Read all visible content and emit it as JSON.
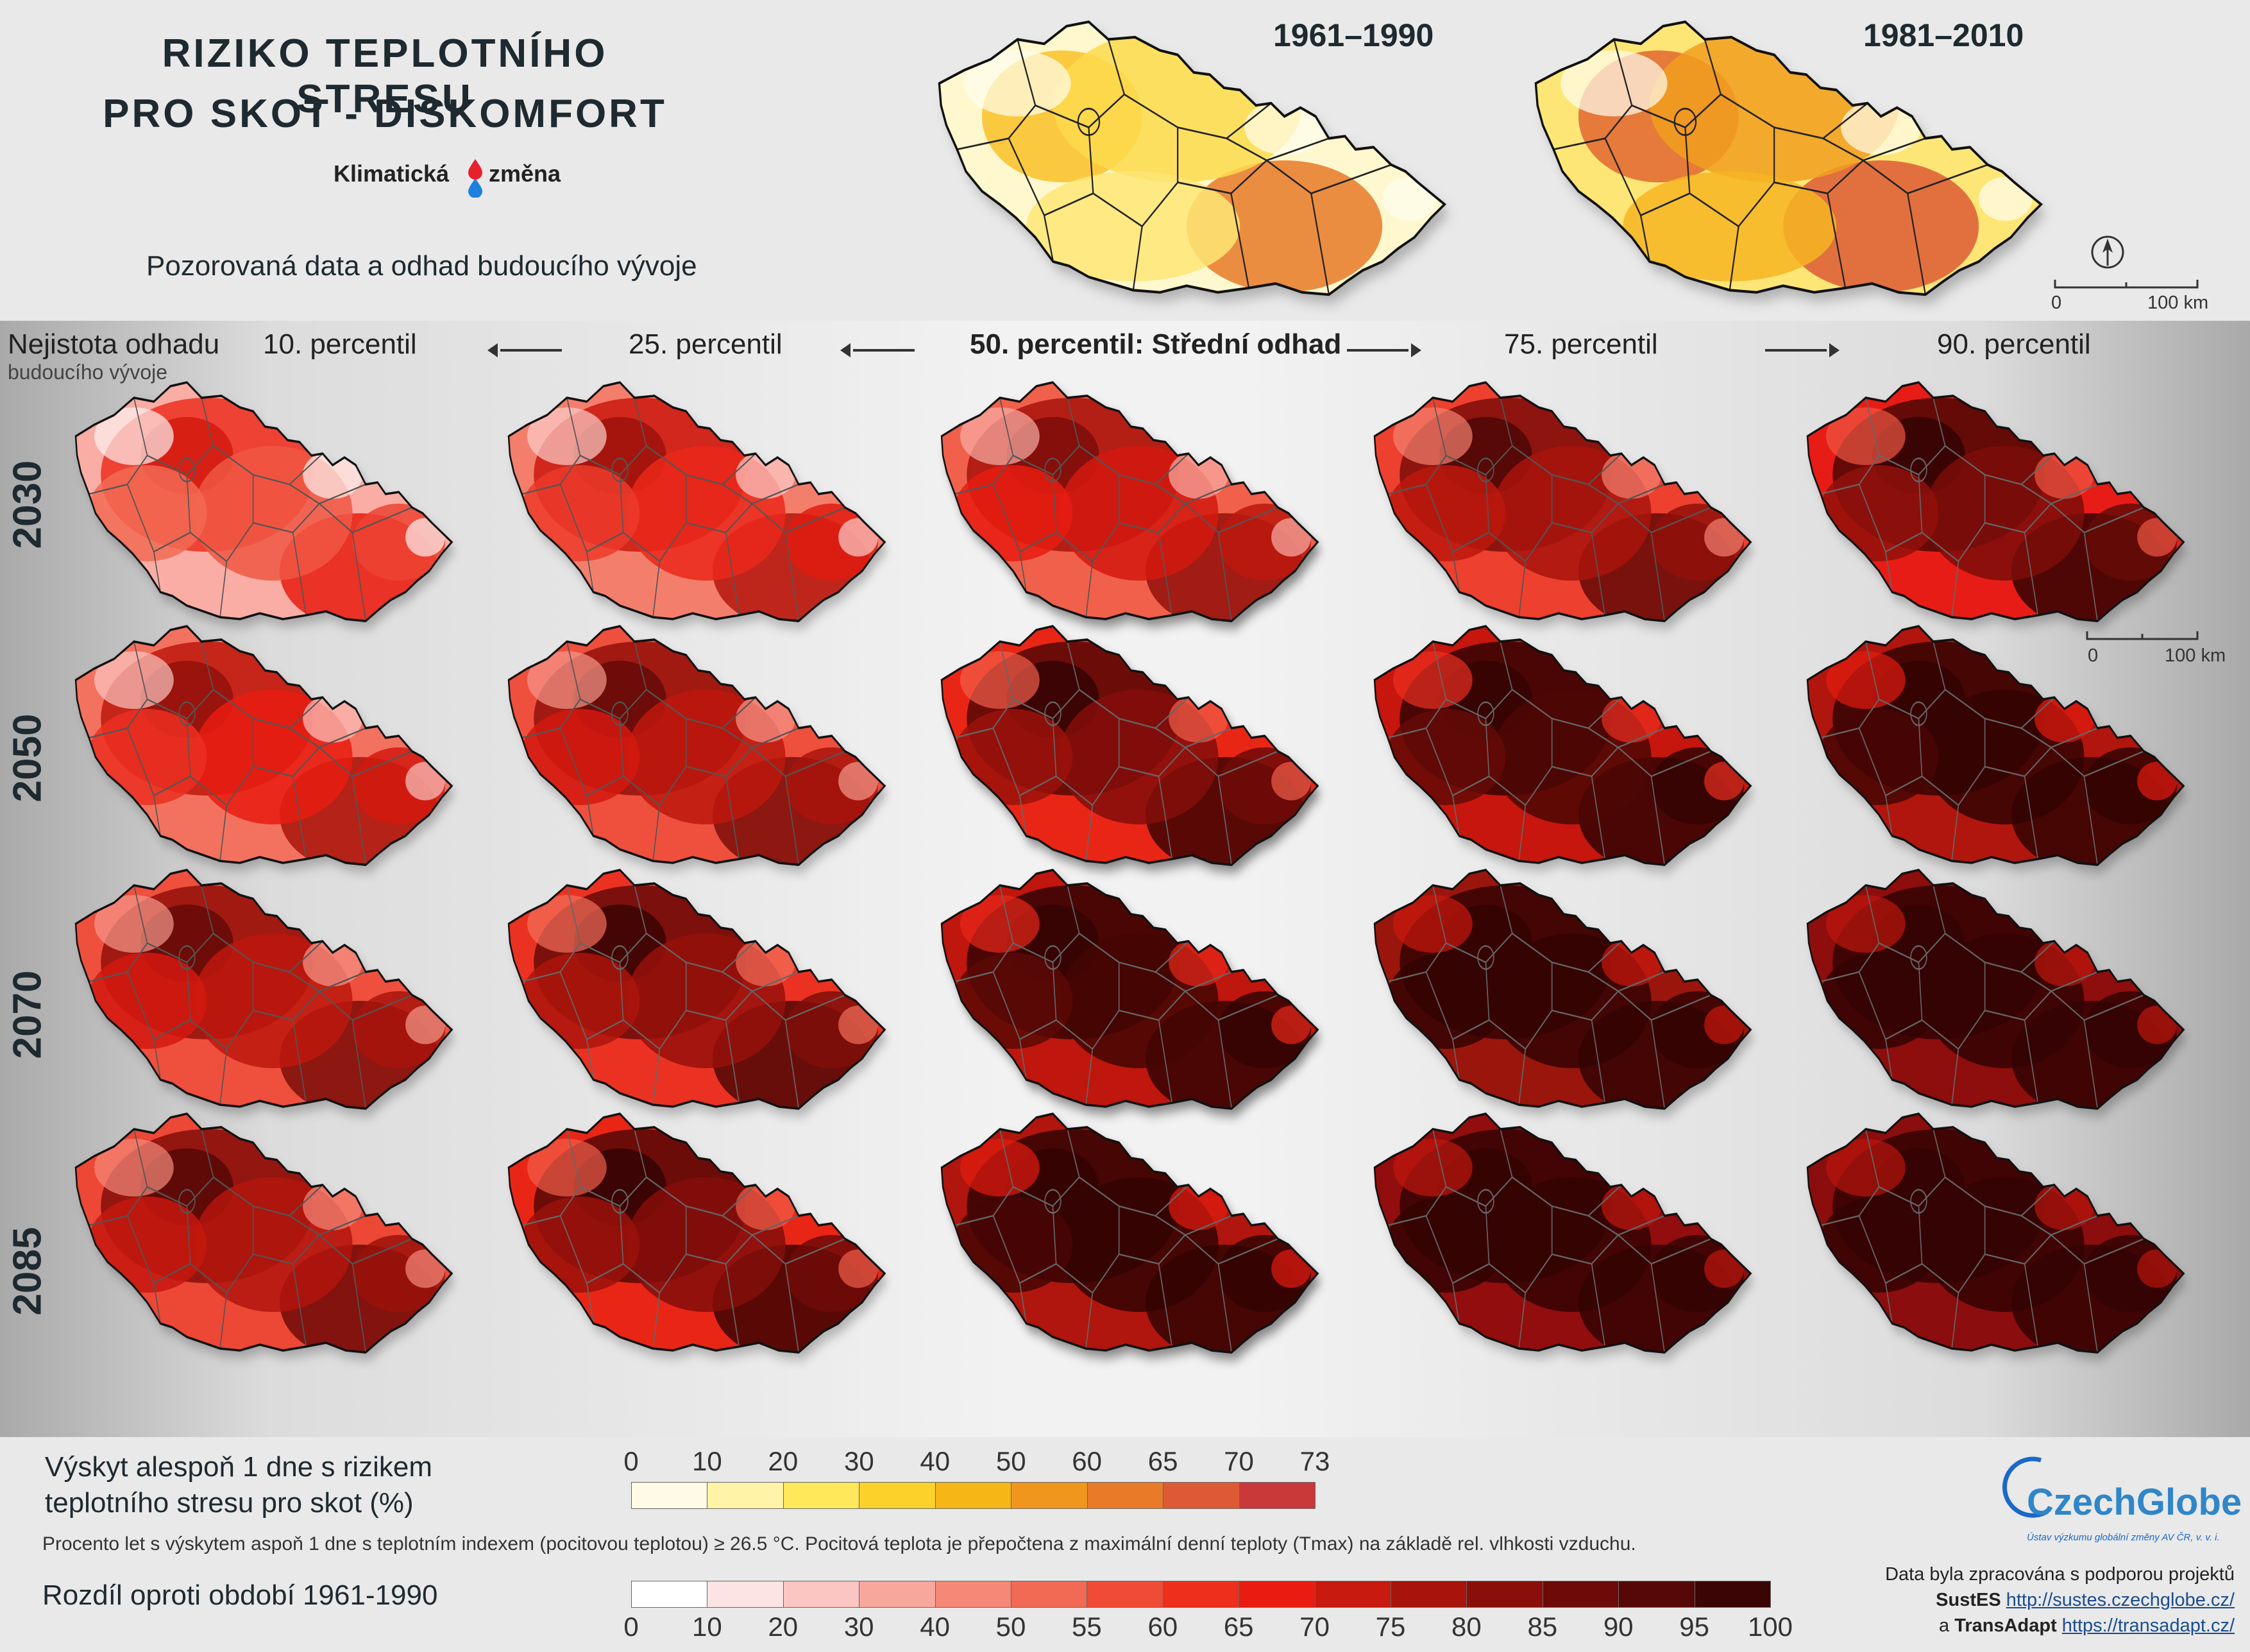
{
  "title": {
    "line1": "RIZIKO TEPLOTNÍHO STRESU",
    "line2": "PRO SKOT - DISKOMFORT"
  },
  "brand": {
    "left": "Klimatická",
    "right": "změna"
  },
  "subtitle": "Pozorovaná data a odhad budoucího vývoje",
  "observed": {
    "periods": [
      "1961–1990",
      "1981–2010"
    ],
    "scale": {
      "zero": "0",
      "max": "100 km"
    }
  },
  "uncertainty": {
    "line1": "Nejistota odhadu",
    "line2": "budoucího vývoje"
  },
  "columns": [
    "10. percentil",
    "25. percentil",
    "50. percentil: Střední odhad",
    "75. percentil",
    "90. percentil"
  ],
  "rows": [
    "2030",
    "2050",
    "2070",
    "2085"
  ],
  "row_levels": [
    [
      0.3,
      0.42,
      0.5,
      0.6,
      0.7
    ],
    [
      0.45,
      0.55,
      0.68,
      0.8,
      0.86
    ],
    [
      0.55,
      0.64,
      0.82,
      0.92,
      0.95
    ],
    [
      0.58,
      0.68,
      0.86,
      0.94,
      0.96
    ]
  ],
  "scale2": {
    "zero": "0",
    "max": "100 km"
  },
  "legend1": {
    "title_line1": "Výskyt alespoň 1 dne s rizikem",
    "title_line2": "teplotního stresu pro skot (%)",
    "ticks": [
      "0",
      "10",
      "20",
      "30",
      "40",
      "50",
      "60",
      "65",
      "70",
      "73"
    ],
    "colors": [
      "#fffbe6",
      "#fff3a8",
      "#ffe85a",
      "#fcd22a",
      "#f6b615",
      "#f0961c",
      "#e87a28",
      "#dd5a35",
      "#c9383a"
    ]
  },
  "note": "Procento let s výskytem aspoň 1 dne s teplotním indexem (pocitovou teplotou) ≥ 26.5 °C. Pocitová teplota je přepočtena z maximální denní teploty (Tmax) na základě rel. vlhkosti vzduchu.",
  "legend2": {
    "title": "Rozdíl oproti období 1961-1990",
    "ticks": [
      "0",
      "10",
      "20",
      "30",
      "40",
      "50",
      "55",
      "60",
      "65",
      "70",
      "75",
      "80",
      "85",
      "90",
      "95",
      "100"
    ],
    "colors": [
      "#ffffff",
      "#fde4e4",
      "#fbc6c2",
      "#f8a79d",
      "#f58876",
      "#f26a54",
      "#f04b36",
      "#ee2f1b",
      "#e81c10",
      "#c81a0e",
      "#a8140c",
      "#8a0f0a",
      "#6e0b08",
      "#550806",
      "#3a0504"
    ]
  },
  "logo": {
    "name": "CzechGlobe",
    "tagline": "Ústav výzkumu globální změny AV ČR, v. v. i."
  },
  "credits": {
    "line1": "Data byla zpracována s podporou projektů",
    "p1_name": "SustES",
    "p1_url": "http://sustes.czechglobe.cz/",
    "p2_prefix": "a",
    "p2_name": "TransAdapt",
    "p2_url": "https://transadapt.cz/"
  }
}
